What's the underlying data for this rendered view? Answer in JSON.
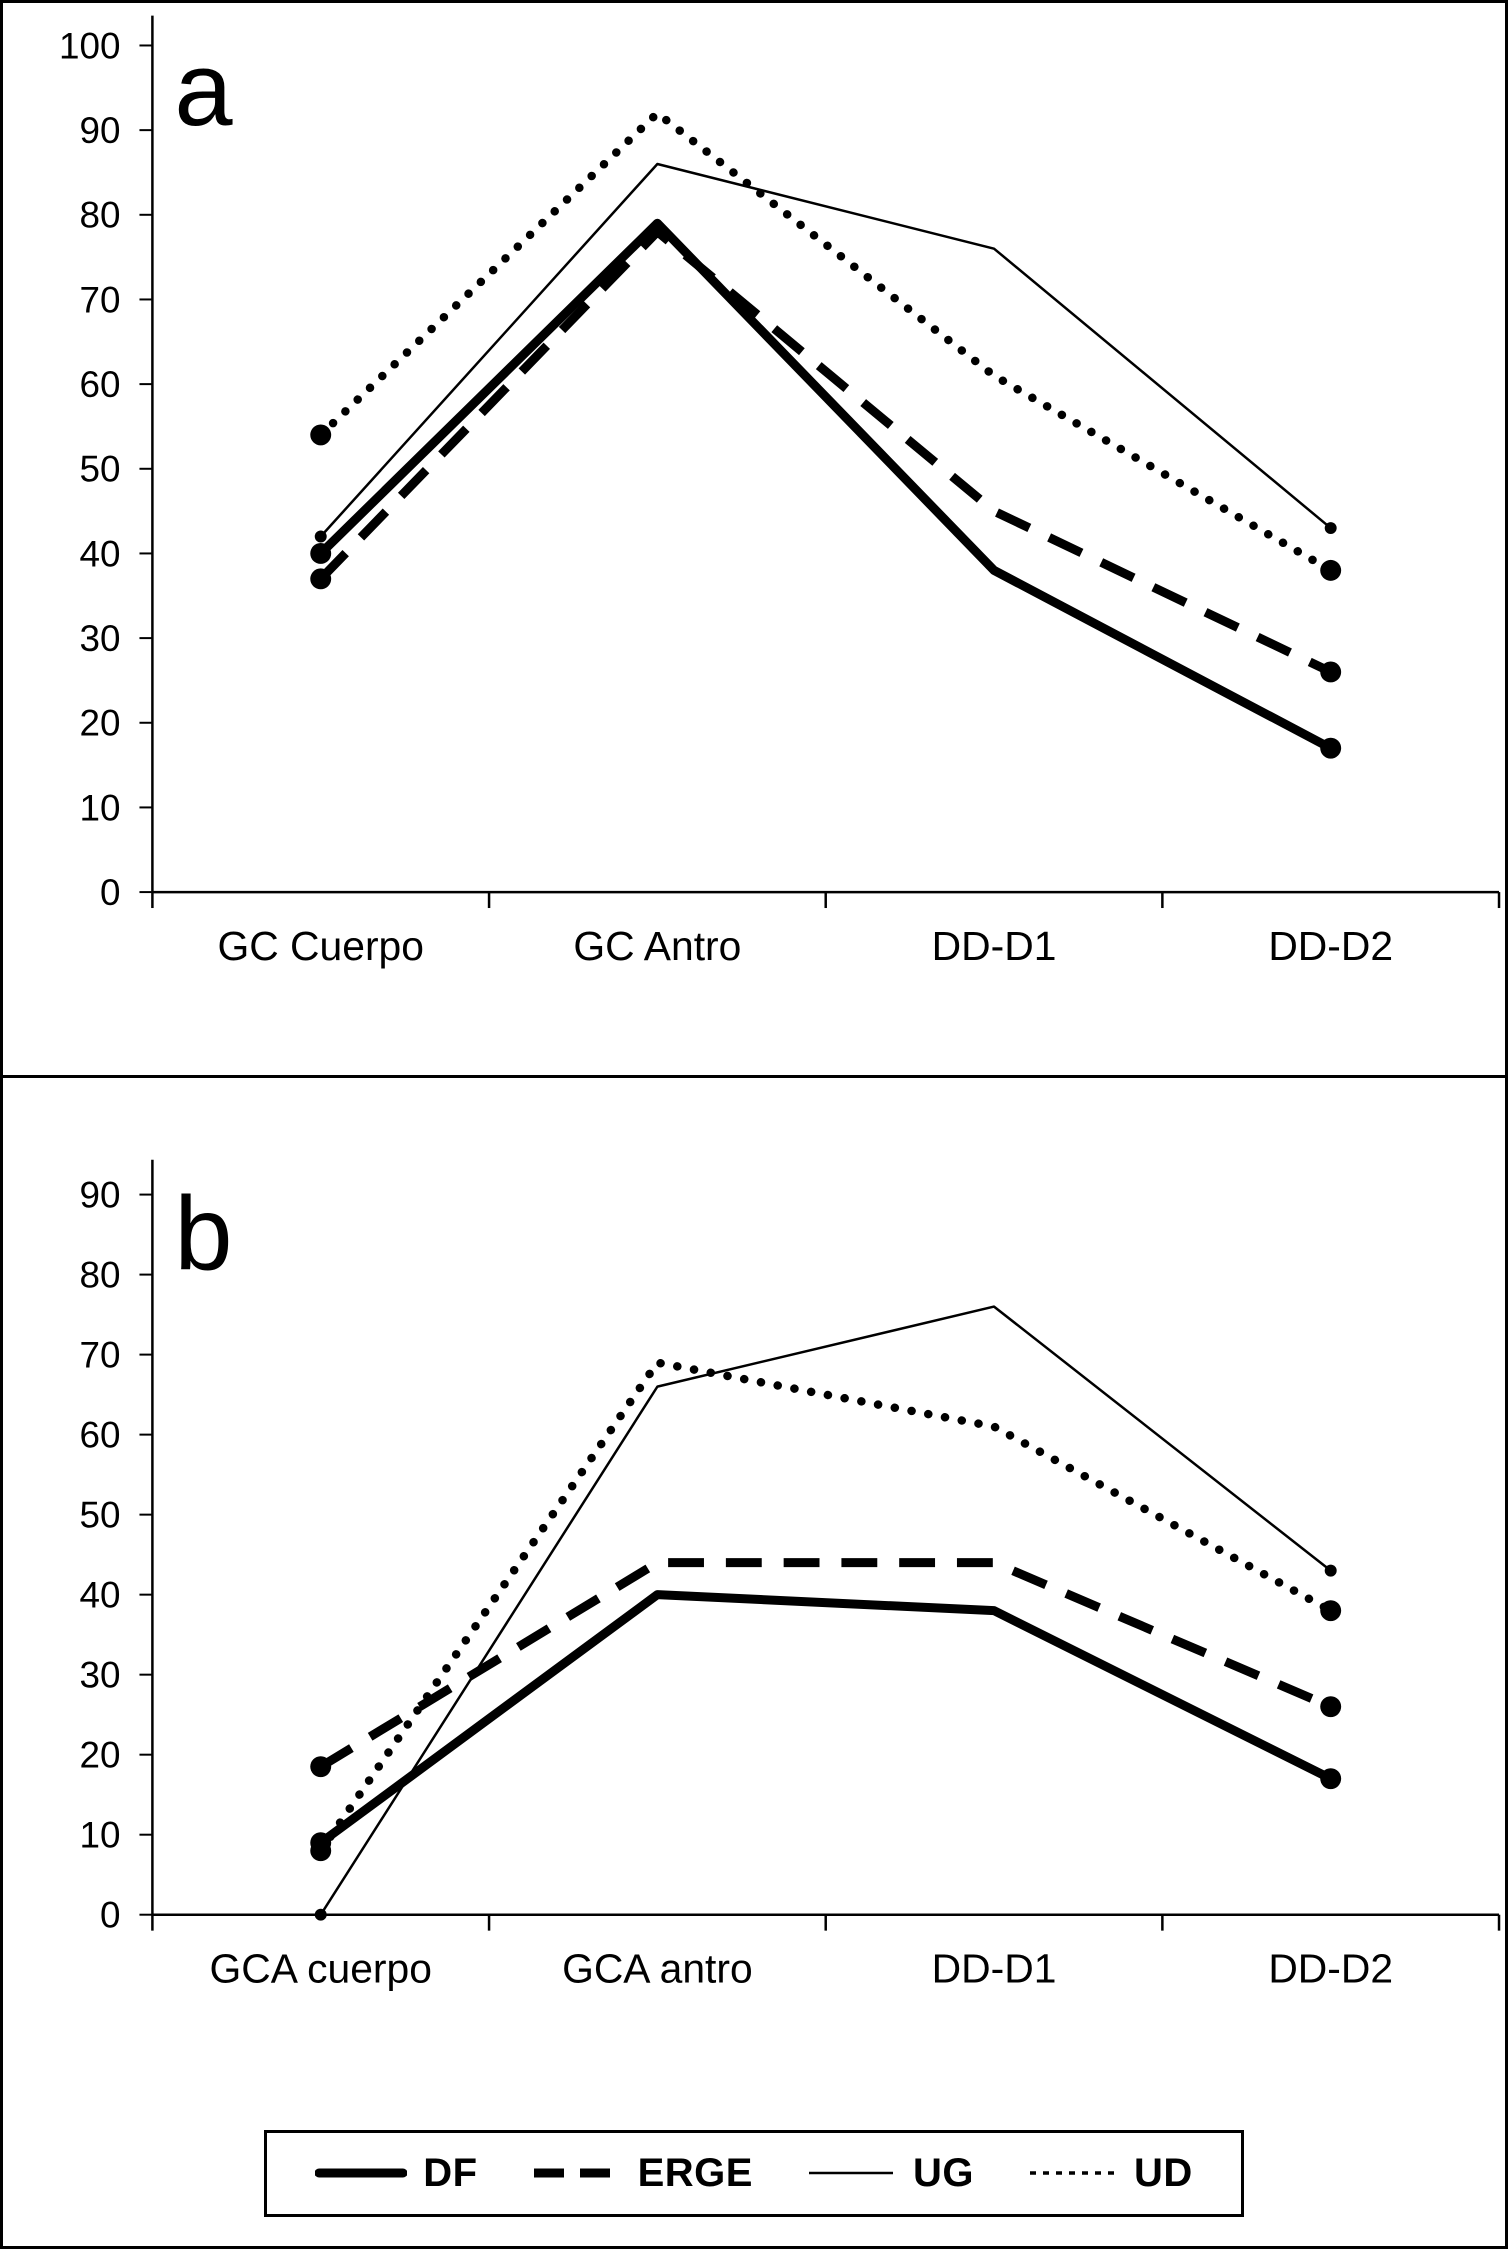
{
  "colors": {
    "line": "#000000",
    "background": "#ffffff",
    "border": "#000000"
  },
  "chart_data": [
    {
      "type": "line",
      "panel_letter": "a",
      "categories": [
        "GC Cuerpo",
        "GC Antro",
        "DD-D1",
        "DD-D2"
      ],
      "xlabel": "",
      "ylabel": "",
      "ylim": [
        0,
        100
      ],
      "ytick_step": 10,
      "grid": false,
      "series": [
        {
          "name": "DF",
          "style": "thick-solid",
          "values": [
            40,
            79,
            38,
            17
          ]
        },
        {
          "name": "ERGE",
          "style": "thick-dashed",
          "values": [
            37,
            78,
            45,
            26
          ]
        },
        {
          "name": "UG",
          "style": "thin-solid",
          "values": [
            42,
            86,
            76,
            43
          ]
        },
        {
          "name": "UD",
          "style": "dotted",
          "values": [
            54,
            92,
            61,
            38
          ]
        }
      ]
    },
    {
      "type": "line",
      "panel_letter": "b",
      "categories": [
        "GCA cuerpo",
        "GCA antro",
        "DD-D1",
        "DD-D2"
      ],
      "xlabel": "",
      "ylabel": "",
      "ylim": [
        0,
        90
      ],
      "ytick_step": 10,
      "grid": false,
      "series": [
        {
          "name": "DF",
          "style": "thick-solid",
          "values": [
            9,
            40,
            38,
            17
          ]
        },
        {
          "name": "ERGE",
          "style": "thick-dashed",
          "values": [
            18.5,
            44,
            44,
            26
          ]
        },
        {
          "name": "UG",
          "style": "thin-solid",
          "values": [
            0,
            66,
            76,
            43
          ]
        },
        {
          "name": "UD",
          "style": "dotted",
          "values": [
            8,
            69,
            61,
            38
          ]
        }
      ]
    }
  ],
  "legend": {
    "position": "bottom",
    "items": [
      {
        "label": "DF",
        "style": "thick-solid"
      },
      {
        "label": "ERGE",
        "style": "thick-dashed"
      },
      {
        "label": "UG",
        "style": "thin-solid"
      },
      {
        "label": "UD",
        "style": "dotted-small"
      }
    ]
  }
}
